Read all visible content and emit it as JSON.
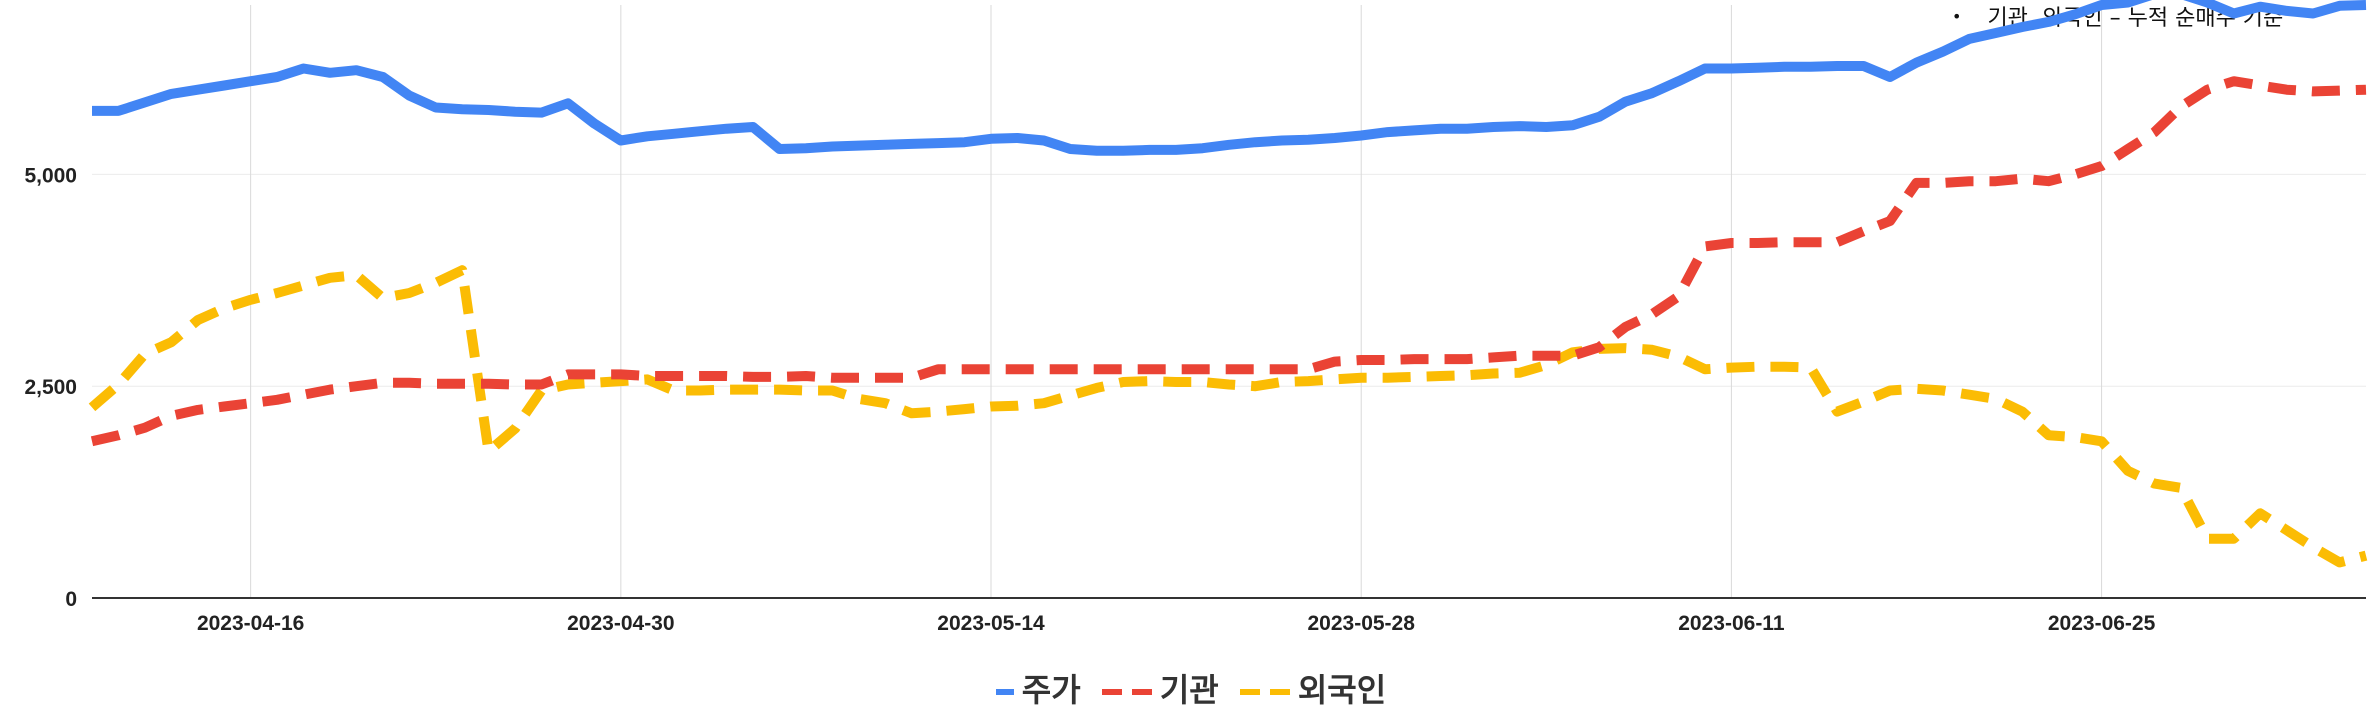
{
  "note": {
    "bullet": "•",
    "text": "기관, 외국인 – 누적 순매수 기준"
  },
  "colors": {
    "stock": "#4285F4",
    "institution": "#EA4335",
    "foreign": "#FBBC04"
  },
  "chart_data": {
    "type": "line",
    "title": "",
    "xlabel": "",
    "ylabel": "",
    "ylim": [
      0,
      7000
    ],
    "yticks": [
      0,
      2500,
      5000
    ],
    "ytick_labels": [
      "0",
      "2,500",
      "5,000"
    ],
    "x_tick_labels": [
      "2023-04-16",
      "2023-04-30",
      "2023-05-14",
      "2023-05-28",
      "2023-06-11",
      "2023-06-25"
    ],
    "x_range": [
      "2023-04-10",
      "2023-07-05"
    ],
    "grid": true,
    "legend_position": "bottom",
    "x": [
      "2023-04-10",
      "2023-04-11",
      "2023-04-12",
      "2023-04-13",
      "2023-04-14",
      "2023-04-15",
      "2023-04-16",
      "2023-04-17",
      "2023-04-18",
      "2023-04-19",
      "2023-04-20",
      "2023-04-21",
      "2023-04-22",
      "2023-04-23",
      "2023-04-24",
      "2023-04-25",
      "2023-04-26",
      "2023-04-27",
      "2023-04-28",
      "2023-04-29",
      "2023-04-30",
      "2023-05-01",
      "2023-05-02",
      "2023-05-03",
      "2023-05-04",
      "2023-05-05",
      "2023-05-06",
      "2023-05-07",
      "2023-05-08",
      "2023-05-09",
      "2023-05-10",
      "2023-05-11",
      "2023-05-12",
      "2023-05-13",
      "2023-05-14",
      "2023-05-15",
      "2023-05-16",
      "2023-05-17",
      "2023-05-18",
      "2023-05-19",
      "2023-05-20",
      "2023-05-21",
      "2023-05-22",
      "2023-05-23",
      "2023-05-24",
      "2023-05-25",
      "2023-05-26",
      "2023-05-27",
      "2023-05-28",
      "2023-05-29",
      "2023-05-30",
      "2023-05-31",
      "2023-06-01",
      "2023-06-02",
      "2023-06-03",
      "2023-06-04",
      "2023-06-05",
      "2023-06-06",
      "2023-06-07",
      "2023-06-08",
      "2023-06-09",
      "2023-06-10",
      "2023-06-11",
      "2023-06-12",
      "2023-06-13",
      "2023-06-14",
      "2023-06-15",
      "2023-06-16",
      "2023-06-17",
      "2023-06-18",
      "2023-06-19",
      "2023-06-20",
      "2023-06-21",
      "2023-06-22",
      "2023-06-23",
      "2023-06-24",
      "2023-06-25",
      "2023-06-26",
      "2023-06-27",
      "2023-06-28",
      "2023-06-29",
      "2023-06-30",
      "2023-07-01",
      "2023-07-02",
      "2023-07-03",
      "2023-07-04",
      "2023-07-05"
    ],
    "series": [
      {
        "name": "주가",
        "key": "stock",
        "dash": "solid",
        "values": [
          5750,
          5750,
          5850,
          5950,
          6000,
          6050,
          6100,
          6150,
          6250,
          6200,
          6230,
          6150,
          5930,
          5790,
          5770,
          5760,
          5740,
          5730,
          5840,
          5600,
          5400,
          5450,
          5480,
          5510,
          5540,
          5560,
          5300,
          5310,
          5330,
          5340,
          5350,
          5360,
          5370,
          5380,
          5420,
          5430,
          5400,
          5300,
          5280,
          5280,
          5290,
          5290,
          5310,
          5350,
          5380,
          5400,
          5410,
          5430,
          5460,
          5500,
          5520,
          5540,
          5540,
          5560,
          5570,
          5560,
          5580,
          5680,
          5860,
          5960,
          6100,
          6250,
          6250,
          6260,
          6270,
          6270,
          6280,
          6280,
          6150,
          6320,
          6450,
          6600,
          6670,
          6740,
          6800,
          6890,
          7000,
          7030,
          7130,
          7130,
          7030,
          6900,
          6980,
          6930,
          6900,
          6990,
          7000
        ]
      },
      {
        "name": "기관",
        "key": "institution",
        "dash": "dashed",
        "values": [
          1850,
          1920,
          2010,
          2150,
          2220,
          2260,
          2300,
          2340,
          2400,
          2460,
          2500,
          2540,
          2540,
          2530,
          2530,
          2530,
          2520,
          2520,
          2640,
          2640,
          2640,
          2620,
          2620,
          2620,
          2620,
          2610,
          2610,
          2620,
          2600,
          2600,
          2600,
          2600,
          2700,
          2700,
          2700,
          2700,
          2700,
          2700,
          2700,
          2700,
          2700,
          2700,
          2700,
          2700,
          2700,
          2700,
          2700,
          2790,
          2810,
          2810,
          2820,
          2820,
          2820,
          2840,
          2860,
          2860,
          2860,
          2960,
          3200,
          3350,
          3560,
          4150,
          4190,
          4190,
          4200,
          4200,
          4200,
          4330,
          4450,
          4900,
          4900,
          4920,
          4920,
          4950,
          4920,
          5000,
          5100,
          5300,
          5500,
          5800,
          6000,
          6100,
          6050,
          6000,
          5980,
          5990,
          6000
        ]
      },
      {
        "name": "외국인",
        "key": "foreign",
        "dash": "dashed",
        "values": [
          2250,
          2520,
          2880,
          3020,
          3280,
          3420,
          3520,
          3600,
          3690,
          3780,
          3810,
          3540,
          3600,
          3720,
          3870,
          1730,
          2000,
          2450,
          2520,
          2540,
          2560,
          2580,
          2450,
          2450,
          2460,
          2460,
          2460,
          2450,
          2450,
          2350,
          2300,
          2180,
          2200,
          2230,
          2260,
          2270,
          2300,
          2390,
          2480,
          2550,
          2560,
          2550,
          2550,
          2520,
          2500,
          2550,
          2560,
          2580,
          2600,
          2600,
          2610,
          2620,
          2630,
          2650,
          2660,
          2750,
          2900,
          2940,
          2950,
          2930,
          2850,
          2700,
          2720,
          2730,
          2730,
          2720,
          2200,
          2320,
          2450,
          2470,
          2450,
          2400,
          2350,
          2200,
          1920,
          1900,
          1850,
          1500,
          1350,
          1300,
          700,
          700,
          1000,
          800,
          600,
          420,
          500
        ]
      }
    ]
  }
}
